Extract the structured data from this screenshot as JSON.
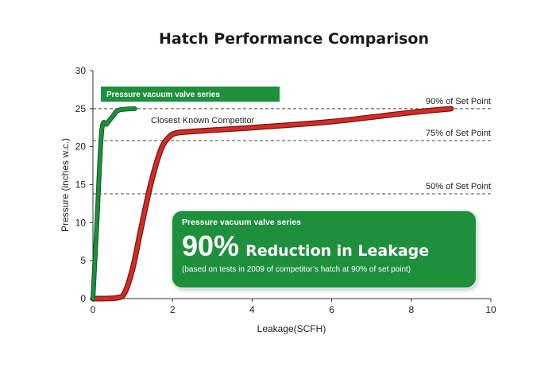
{
  "chart_data": {
    "type": "line",
    "title": "Hatch Performance Comparison",
    "xlabel": "Leakage(SCFH)",
    "ylabel": "Pressure (inches w.c.)",
    "xlim": [
      0,
      10
    ],
    "ylim": [
      0,
      30
    ],
    "xticks": [
      0,
      2,
      4,
      6,
      8,
      10
    ],
    "yticks": [
      0,
      5,
      10,
      15,
      20,
      25,
      30
    ],
    "grid": false,
    "series": [
      {
        "name": "Pressure vacuum valve series",
        "color": "#1e8f3c",
        "points": [
          [
            0,
            0
          ],
          [
            0.1,
            10
          ],
          [
            0.22,
            22
          ],
          [
            0.35,
            23
          ],
          [
            0.5,
            24
          ],
          [
            0.65,
            24.8
          ],
          [
            1.05,
            25
          ]
        ]
      },
      {
        "name": "Closest Known Competitor",
        "color": "#d62a24",
        "points": [
          [
            0,
            0
          ],
          [
            0.6,
            0.1
          ],
          [
            0.8,
            0.8
          ],
          [
            1.0,
            4
          ],
          [
            1.2,
            9
          ],
          [
            1.45,
            15
          ],
          [
            1.7,
            19.5
          ],
          [
            1.9,
            21.2
          ],
          [
            2.1,
            21.8
          ],
          [
            2.5,
            22
          ],
          [
            4,
            22.5
          ],
          [
            6,
            23.3
          ],
          [
            8,
            24.5
          ],
          [
            9,
            25
          ]
        ]
      }
    ],
    "reference_lines": [
      {
        "label": "90% of Set Point",
        "y": 25
      },
      {
        "label": "75% of Set Point",
        "y": 20.8
      },
      {
        "label": "50% of Set Point",
        "y": 13.8
      }
    ],
    "legend": {
      "label": "Pressure vacuum valve series",
      "color": "#1e8f3c",
      "placement": "top-left"
    },
    "annotations": [
      {
        "text": "Closest Known Competitor"
      }
    ]
  },
  "callout": {
    "heading": "Pressure vacuum valve series",
    "highlight": "90%",
    "headline": "Reduction in Leakage",
    "note": "(based on tests in 2009 of competitor’s hatch at 90% of set point)",
    "color": "#1e8f3c"
  }
}
